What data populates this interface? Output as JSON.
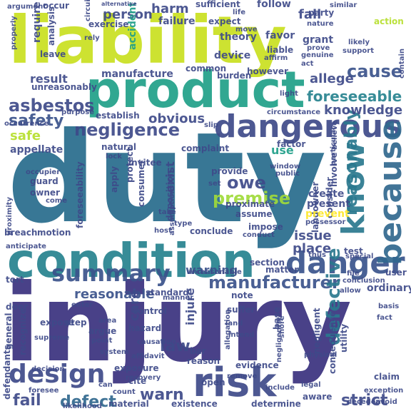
{
  "wordcloud": {
    "background": "#ffffff",
    "palette": [
      "#440154",
      "#482878",
      "#3e4a89",
      "#31688e",
      "#26828e",
      "#1f9e89",
      "#35b779",
      "#6ece58",
      "#b5de2b",
      "#fde725"
    ],
    "words": [
      {
        "text": "duty",
        "color": "#2c6f8e"
      },
      {
        "text": "injury",
        "color": "#433b84"
      },
      {
        "text": "liability",
        "color": "#c9e020"
      },
      {
        "text": "product",
        "color": "#1f9f88"
      },
      {
        "text": "condition",
        "color": "#26828e"
      },
      {
        "text": "dangerous",
        "color": "#3e4a89"
      },
      {
        "text": "danger",
        "color": "#3a548c"
      },
      {
        "text": "risk",
        "color": "#3e4a89"
      },
      {
        "text": "design",
        "color": "#3e4a89"
      },
      {
        "text": "know",
        "color": "#2a788e"
      },
      {
        "text": "because",
        "color": "#31688e"
      },
      {
        "text": "summary",
        "color": "#3b528b"
      },
      {
        "text": "negligence",
        "color": "#3e4a89"
      },
      {
        "text": "asbestos",
        "color": "#3e4a89"
      },
      {
        "text": "reasonably",
        "color": "#2a788e"
      },
      {
        "text": "manufacturer",
        "color": "#3b528b"
      },
      {
        "text": "defective",
        "color": "#2a788e"
      },
      {
        "text": "cause",
        "color": "#3b528b"
      },
      {
        "text": "foreseeable",
        "color": "#26828e"
      },
      {
        "text": "premise",
        "color": "#a0da39"
      },
      {
        "text": "owe",
        "color": "#3e4a89"
      },
      {
        "text": "warn",
        "color": "#3e4a89"
      },
      {
        "text": "law",
        "color": "#3e4a89"
      },
      {
        "text": "safety",
        "color": "#3b528b"
      },
      {
        "text": "fail",
        "color": "#3e4a89"
      },
      {
        "text": "defect",
        "color": "#31688e"
      },
      {
        "text": "strict",
        "color": "#3e4a89"
      },
      {
        "text": "person",
        "color": "#3e4a89"
      },
      {
        "text": "harm",
        "color": "#3e4a89"
      },
      {
        "text": "allege",
        "color": "#3e4a89"
      },
      {
        "text": "knowledge",
        "color": "#3e4a89"
      },
      {
        "text": "fall",
        "color": "#3e4a89"
      },
      {
        "text": "safe",
        "color": "#b5de2b"
      },
      {
        "text": "obvious",
        "color": "#3e4a89"
      },
      {
        "text": "reasonable",
        "color": "#3b528b"
      },
      {
        "text": "warning",
        "color": "#3b528b"
      },
      {
        "text": "care",
        "color": "#3e4a89"
      },
      {
        "text": "issue",
        "color": "#3e4a89"
      },
      {
        "text": "place",
        "color": "#3e4a89"
      },
      {
        "text": "result",
        "color": "#3e4a89"
      },
      {
        "text": "use",
        "color": "#1f9e89"
      },
      {
        "text": "exist",
        "color": "#3e4a89"
      },
      {
        "text": "injure",
        "color": "#3e4a89"
      },
      {
        "text": "create",
        "color": "#3e4a89"
      },
      {
        "text": "present",
        "color": "#3e4a89"
      },
      {
        "text": "ordinary",
        "color": "#3e4a89"
      },
      {
        "text": "user",
        "color": "#3e4a89"
      },
      {
        "text": "manufacture",
        "color": "#3e4a89"
      },
      {
        "text": "device",
        "color": "#3e4a89"
      },
      {
        "text": "theory",
        "color": "#3e4a89"
      },
      {
        "text": "liable",
        "color": "#3e4a89"
      },
      {
        "text": "favor",
        "color": "#3e4a89"
      },
      {
        "text": "grant",
        "color": "#3e4a89"
      },
      {
        "text": "accident",
        "color": "#1f9e89"
      },
      {
        "text": "exercise",
        "color": "#3e4a89"
      },
      {
        "text": "failure",
        "color": "#3e4a89"
      },
      {
        "text": "sufficient",
        "color": "#3e4a89"
      },
      {
        "text": "follow",
        "color": "#3e4a89"
      },
      {
        "text": "party",
        "color": "#3e4a89"
      },
      {
        "text": "require",
        "color": "#3e4a89"
      },
      {
        "text": "occur",
        "color": "#3e4a89"
      },
      {
        "text": "argument",
        "color": "#3e4a89"
      },
      {
        "text": "alternative",
        "color": "#3e4a89"
      },
      {
        "text": "similar",
        "color": "#3e4a89"
      },
      {
        "text": "analysis",
        "color": "#3e4a89"
      },
      {
        "text": "nature",
        "color": "#3e4a89"
      },
      {
        "text": "action",
        "color": "#b5de2b"
      },
      {
        "text": "properly",
        "color": "#3e4a89"
      },
      {
        "text": "expect",
        "color": "#3e4a89"
      },
      {
        "text": "likely",
        "color": "#3e4a89"
      },
      {
        "text": "support",
        "color": "#3e4a89"
      },
      {
        "text": "circuit",
        "color": "#3e4a89"
      },
      {
        "text": "rely",
        "color": "#3e4a89"
      },
      {
        "text": "leave",
        "color": "#3e4a89"
      },
      {
        "text": "common",
        "color": "#3e4a89"
      },
      {
        "text": "burden",
        "color": "#3e4a89"
      },
      {
        "text": "however",
        "color": "#3e4a89"
      },
      {
        "text": "act",
        "color": "#3e4a89"
      },
      {
        "text": "genuine",
        "color": "#3e4a89"
      },
      {
        "text": "contain",
        "color": "#3e4a89"
      },
      {
        "text": "move",
        "color": "#3e4a89"
      },
      {
        "text": "life",
        "color": "#3e4a89"
      },
      {
        "text": "affirm",
        "color": "#3e4a89"
      },
      {
        "text": "prove",
        "color": "#3e4a89"
      },
      {
        "text": "light",
        "color": "#3e4a89"
      },
      {
        "text": "unreasonably",
        "color": "#3e4a89"
      },
      {
        "text": "establish",
        "color": "#3e4a89"
      },
      {
        "text": "purpose",
        "color": "#3e4a89"
      },
      {
        "text": "appellate",
        "color": "#3e4a89"
      },
      {
        "text": "occurrence",
        "color": "#3e4a89"
      },
      {
        "text": "circumstance",
        "color": "#3e4a89"
      },
      {
        "text": "slip",
        "color": "#3e4a89"
      },
      {
        "text": "invitee",
        "color": "#3e4a89"
      },
      {
        "text": "complaint",
        "color": "#3e4a89"
      },
      {
        "text": "natural",
        "color": "#3e4a89"
      },
      {
        "text": "factor",
        "color": "#3e4a89"
      },
      {
        "text": "protect",
        "color": "#3e4a89"
      },
      {
        "text": "lock",
        "color": "#3e4a89"
      },
      {
        "text": "provide",
        "color": "#3e4a89"
      },
      {
        "text": "window",
        "color": "#3e4a89"
      },
      {
        "text": "public",
        "color": "#3e4a89"
      },
      {
        "text": "believe",
        "color": "#3e4a89"
      },
      {
        "text": "particular",
        "color": "#3e4a89"
      },
      {
        "text": "landowner",
        "color": "#3e4a89"
      },
      {
        "text": "consider",
        "color": "#3e4a89"
      },
      {
        "text": "involve",
        "color": "#3e4a89"
      },
      {
        "text": "guard",
        "color": "#3e4a89"
      },
      {
        "text": "owner",
        "color": "#3e4a89"
      },
      {
        "text": "occupier",
        "color": "#3e4a89"
      },
      {
        "text": "come",
        "color": "#3e4a89"
      },
      {
        "text": "set",
        "color": "#3e4a89"
      },
      {
        "text": "apply",
        "color": "#3e4a89"
      },
      {
        "text": "consumer",
        "color": "#3e4a89"
      },
      {
        "text": "deposition",
        "color": "#3e4a89"
      },
      {
        "text": "proximate",
        "color": "#3e4a89"
      },
      {
        "text": "assume",
        "color": "#3e4a89"
      },
      {
        "text": "assumption",
        "color": "#3e4a89"
      },
      {
        "text": "foreseeability",
        "color": "#3e4a89"
      },
      {
        "text": "proximity",
        "color": "#3e4a89"
      },
      {
        "text": "impose",
        "color": "#3e4a89"
      },
      {
        "text": "prevent",
        "color": "#fde725"
      },
      {
        "text": "possessor",
        "color": "#3e4a89"
      },
      {
        "text": "take",
        "color": "#3e4a89"
      },
      {
        "text": "type",
        "color": "#3e4a89"
      },
      {
        "text": "host",
        "color": "#3e4a89"
      },
      {
        "text": "conclude",
        "color": "#3e4a89"
      },
      {
        "text": "conduct",
        "color": "#3e4a89"
      },
      {
        "text": "breach",
        "color": "#3e4a89"
      },
      {
        "text": "motion",
        "color": "#3e4a89"
      },
      {
        "text": "test",
        "color": "#3e4a89"
      },
      {
        "text": "special",
        "color": "#3e4a89"
      },
      {
        "text": "thus",
        "color": "#3e4a89"
      },
      {
        "text": "anticipate",
        "color": "#3e4a89"
      },
      {
        "text": "section",
        "color": "#3e4a89"
      },
      {
        "text": "unreasonable",
        "color": "#3e4a89"
      },
      {
        "text": "matter",
        "color": "#3e4a89"
      },
      {
        "text": "tort",
        "color": "#3e4a89"
      },
      {
        "text": "door",
        "color": "#3e4a89"
      },
      {
        "text": "conclusion",
        "color": "#3e4a89"
      },
      {
        "text": "allow",
        "color": "#3e4a89"
      },
      {
        "text": "standard",
        "color": "#3e4a89"
      },
      {
        "text": "enter",
        "color": "#3e4a89"
      },
      {
        "text": "recognize",
        "color": "#3e4a89"
      },
      {
        "text": "general",
        "color": "#3e4a89"
      },
      {
        "text": "expose",
        "color": "#3e4a89"
      },
      {
        "text": "step",
        "color": "#3e4a89"
      },
      {
        "text": "control",
        "color": "#3e4a89"
      },
      {
        "text": "argue",
        "color": "#3e4a89"
      },
      {
        "text": "area",
        "color": "#3e4a89"
      },
      {
        "text": "manner",
        "color": "#3e4a89"
      },
      {
        "text": "hazard",
        "color": "#3e4a89"
      },
      {
        "text": "point",
        "color": "#3e4a89"
      },
      {
        "text": "suffer",
        "color": "#3e4a89"
      },
      {
        "text": "land",
        "color": "#3e4a89"
      },
      {
        "text": "intend",
        "color": "#3e4a89"
      },
      {
        "text": "note",
        "color": "#3e4a89"
      },
      {
        "text": "base",
        "color": "#3e4a89"
      },
      {
        "text": "basis",
        "color": "#3e4a89"
      },
      {
        "text": "fact",
        "color": "#3e4a89"
      },
      {
        "text": "supreme",
        "color": "#3e4a89"
      },
      {
        "text": "system",
        "color": "#3e4a89"
      },
      {
        "text": "affidavit",
        "color": "#3e4a89"
      },
      {
        "text": "causation",
        "color": "#3e4a89"
      },
      {
        "text": "bar",
        "color": "#3e4a89"
      },
      {
        "text": "allegation",
        "color": "#3e4a89"
      },
      {
        "text": "negligent",
        "color": "#3e4a89"
      },
      {
        "text": "consequence",
        "color": "#3e4a89"
      },
      {
        "text": "utility",
        "color": "#3e4a89"
      },
      {
        "text": "defendants",
        "color": "#3e4a89"
      },
      {
        "text": "decision",
        "color": "#3e4a89"
      },
      {
        "text": "foresee",
        "color": "#3e4a89"
      },
      {
        "text": "exposure",
        "color": "#3e4a89"
      },
      {
        "text": "recovery",
        "color": "#3e4a89"
      },
      {
        "text": "reason",
        "color": "#3e4a89"
      },
      {
        "text": "negligently",
        "color": "#3e4a89"
      },
      {
        "text": "evidence",
        "color": "#3e4a89"
      },
      {
        "text": "physical",
        "color": "#3e4a89"
      },
      {
        "text": "claim",
        "color": "#3e4a89"
      },
      {
        "text": "exception",
        "color": "#3e4a89"
      },
      {
        "text": "avoid",
        "color": "#3e4a89"
      },
      {
        "text": "decedent",
        "color": "#3e4a89"
      },
      {
        "text": "cite",
        "color": "#3e4a89"
      },
      {
        "text": "remove",
        "color": "#3e4a89"
      },
      {
        "text": "open",
        "color": "#3e4a89"
      },
      {
        "text": "include",
        "color": "#3e4a89"
      },
      {
        "text": "legal",
        "color": "#3e4a89"
      },
      {
        "text": "aware",
        "color": "#3e4a89"
      },
      {
        "text": "determine",
        "color": "#3e4a89"
      },
      {
        "text": "existence",
        "color": "#3e4a89"
      },
      {
        "text": "material",
        "color": "#3e4a89"
      },
      {
        "text": "count",
        "color": "#3e4a89"
      },
      {
        "text": "likelihood",
        "color": "#3e4a89"
      },
      {
        "text": "can",
        "color": "#3e4a89"
      },
      {
        "text": "file",
        "color": "#3e4a89"
      },
      {
        "text": "shore",
        "color": "#3e4a89"
      },
      {
        "text": "fail",
        "color": "#3e4a89"
      }
    ]
  }
}
